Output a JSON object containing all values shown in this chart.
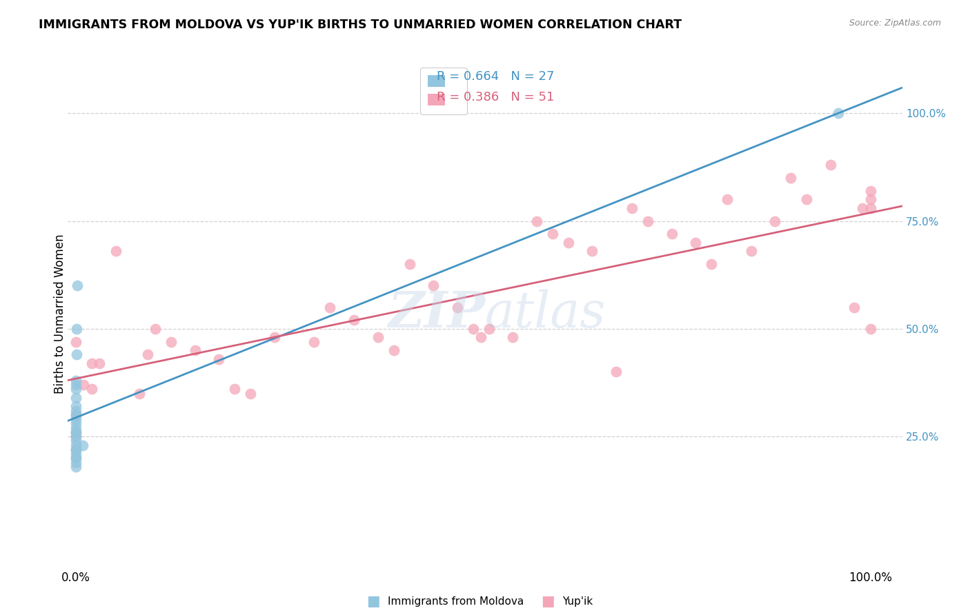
{
  "title": "IMMIGRANTS FROM MOLDOVA VS YUP'IK BIRTHS TO UNMARRIED WOMEN CORRELATION CHART",
  "source": "Source: ZipAtlas.com",
  "ylabel": "Births to Unmarried Women",
  "legend_label1": "Immigrants from Moldova",
  "legend_label2": "Yup'ik",
  "legend_R1": "R = 0.664",
  "legend_N1": "N = 27",
  "legend_R2": "R = 0.386",
  "legend_N2": "N = 51",
  "color_blue": "#92c5de",
  "color_pink": "#f4a6b8",
  "color_blue_line": "#4393c3",
  "color_pink_line": "#d6607a",
  "color_blue_text": "#4393c3",
  "color_pink_text": "#d6607a",
  "color_tick_right": "#4393c3",
  "blue_x": [
    0.0,
    0.0,
    0.0,
    0.0,
    0.0,
    0.0,
    0.0,
    0.0,
    0.0,
    0.0,
    0.0,
    0.0,
    0.0,
    0.0,
    0.0,
    0.0,
    0.0,
    0.0,
    0.0,
    0.0,
    0.0,
    0.0,
    0.001,
    0.001,
    0.002,
    0.009,
    0.96
  ],
  "blue_y": [
    0.38,
    0.37,
    0.36,
    0.34,
    0.32,
    0.31,
    0.3,
    0.29,
    0.28,
    0.27,
    0.26,
    0.26,
    0.25,
    0.24,
    0.23,
    0.22,
    0.22,
    0.21,
    0.2,
    0.2,
    0.19,
    0.18,
    0.5,
    0.44,
    0.6,
    0.23,
    1.0
  ],
  "pink_x": [
    0.0,
    0.0,
    0.0,
    0.01,
    0.02,
    0.02,
    0.03,
    0.05,
    0.08,
    0.09,
    0.1,
    0.12,
    0.15,
    0.18,
    0.2,
    0.22,
    0.25,
    0.3,
    0.32,
    0.35,
    0.38,
    0.4,
    0.42,
    0.45,
    0.48,
    0.5,
    0.51,
    0.52,
    0.55,
    0.58,
    0.6,
    0.62,
    0.65,
    0.68,
    0.7,
    0.72,
    0.75,
    0.78,
    0.8,
    0.82,
    0.85,
    0.88,
    0.9,
    0.92,
    0.95,
    0.98,
    0.99,
    1.0,
    1.0,
    1.0,
    1.0
  ],
  "pink_y": [
    0.47,
    0.3,
    0.25,
    0.37,
    0.42,
    0.36,
    0.42,
    0.68,
    0.35,
    0.44,
    0.5,
    0.47,
    0.45,
    0.43,
    0.36,
    0.35,
    0.48,
    0.47,
    0.55,
    0.52,
    0.48,
    0.45,
    0.65,
    0.6,
    0.55,
    0.5,
    0.48,
    0.5,
    0.48,
    0.75,
    0.72,
    0.7,
    0.68,
    0.4,
    0.78,
    0.75,
    0.72,
    0.7,
    0.65,
    0.8,
    0.68,
    0.75,
    0.85,
    0.8,
    0.88,
    0.55,
    0.78,
    0.78,
    0.8,
    0.5,
    0.82
  ],
  "blue_line_x": [
    0.0,
    0.012
  ],
  "blue_line_y": [
    0.27,
    1.0
  ],
  "pink_line_x": [
    0.0,
    1.0
  ],
  "pink_line_y": [
    0.48,
    0.78
  ],
  "xlim": [
    -0.01,
    1.04
  ],
  "ylim": [
    -0.05,
    1.12
  ],
  "yticks": [
    0.0,
    0.25,
    0.5,
    0.75,
    1.0
  ],
  "ytick_labels": [
    "",
    "25.0%",
    "50.0%",
    "75.0%",
    "100.0%"
  ],
  "xticks": [
    0.0,
    1.0
  ],
  "xtick_labels": [
    "0.0%",
    "100.0%"
  ]
}
